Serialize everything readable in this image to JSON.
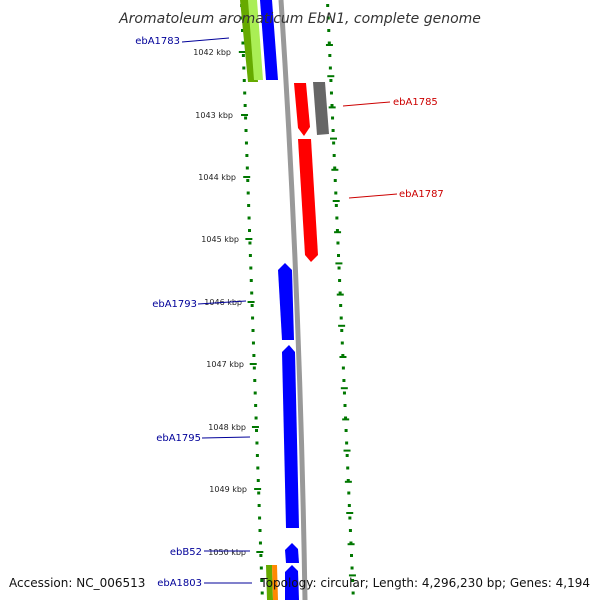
{
  "map": {
    "title": "Aromatoleum aromaticum EbN1, complete genome",
    "accession": "Accession: NC_006513",
    "topology": "Topology: circular; Length: 4,296,230 bp; Genes: 4,194",
    "colors": {
      "forward": "#0000ff",
      "reverse": "#ff0000",
      "other": "#666666",
      "tick": "#007700",
      "backbone": "#999999",
      "label_blue": "#000099",
      "label_red": "#cc0000",
      "rna_green": "#66aa00",
      "rna_lime": "#aaee55",
      "rna_orange": "#ff8800"
    },
    "kbp_labels": [
      "1042 kbp",
      "1043 kbp",
      "1044 kbp",
      "1045 kbp",
      "1046 kbp",
      "1047 kbp",
      "1048 kbp",
      "1049 kbp",
      "1050 kbp"
    ],
    "gene_labels": [
      {
        "text": "ebA1783",
        "color": "blue"
      },
      {
        "text": "ebA1785",
        "color": "red"
      },
      {
        "text": "ebA1787",
        "color": "red"
      },
      {
        "text": "ebA1793",
        "color": "blue"
      },
      {
        "text": "ebA1795",
        "color": "blue"
      },
      {
        "text": "ebB52",
        "color": "blue"
      },
      {
        "text": "ebA1803",
        "color": "blue"
      }
    ]
  }
}
